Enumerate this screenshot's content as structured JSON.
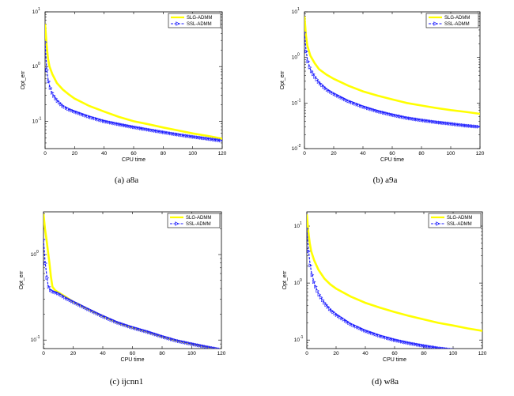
{
  "colors": {
    "slg": "#ffff00",
    "ssl": "#1a1aff",
    "axis": "#000000"
  },
  "chart_data": [
    {
      "type": "line",
      "caption": "(a) a8a",
      "xlabel": "CPU time",
      "ylabel": "Opt_err",
      "xlim": [
        0,
        120
      ],
      "ylim_log10": [
        -1.5,
        1
      ],
      "y_scale": "log",
      "x_ticks": [
        "0",
        "20",
        "40",
        "60",
        "80",
        "100",
        "120"
      ],
      "y_ticks": [
        {
          "text": "10",
          "exp": "1",
          "v": 1
        },
        {
          "text": "10",
          "exp": "0",
          "v": 0
        },
        {
          "text": "10",
          "exp": "-1",
          "v": -1
        }
      ],
      "legend": {
        "placement": "top-right",
        "entries": [
          "SLG-ADMM",
          "SSL-ADMM"
        ]
      },
      "series": [
        {
          "name": "SLG-ADMM",
          "color": "#ffff00",
          "marker": "none",
          "x": [
            0,
            1,
            2,
            3,
            5,
            8,
            12,
            16,
            20,
            30,
            40,
            50,
            60,
            70,
            80,
            90,
            100,
            110,
            120
          ],
          "y": [
            6.0,
            2.5,
            1.4,
            1.0,
            0.72,
            0.5,
            0.38,
            0.31,
            0.26,
            0.19,
            0.15,
            0.12,
            0.1,
            0.088,
            0.077,
            0.068,
            0.06,
            0.054,
            0.048
          ]
        },
        {
          "name": "SSL-ADMM",
          "color": "#1a1aff",
          "marker": "triangle",
          "x": [
            0,
            1,
            2,
            3,
            5,
            8,
            12,
            16,
            20,
            30,
            40,
            50,
            60,
            70,
            80,
            90,
            100,
            110,
            120
          ],
          "y": [
            2.8,
            0.95,
            0.6,
            0.45,
            0.32,
            0.24,
            0.19,
            0.165,
            0.15,
            0.12,
            0.1,
            0.088,
            0.078,
            0.07,
            0.063,
            0.057,
            0.052,
            0.048,
            0.044
          ]
        }
      ]
    },
    {
      "type": "line",
      "caption": "(b) a9a",
      "xlabel": "CPU time",
      "ylabel": "Opt_err",
      "xlim": [
        0,
        120
      ],
      "ylim_log10": [
        -2,
        1
      ],
      "y_scale": "log",
      "x_ticks": [
        "0",
        "20",
        "40",
        "60",
        "80",
        "100",
        "120"
      ],
      "y_ticks": [
        {
          "text": "10",
          "exp": "1",
          "v": 1
        },
        {
          "text": "10",
          "exp": "0",
          "v": 0
        },
        {
          "text": "10",
          "exp": "-1",
          "v": -1
        },
        {
          "text": "10",
          "exp": "-2",
          "v": -2
        }
      ],
      "legend": {
        "placement": "top-right",
        "entries": [
          "SLG-ADMM",
          "SSL-ADMM"
        ]
      },
      "series": [
        {
          "name": "SLG-ADMM",
          "color": "#ffff00",
          "marker": "none",
          "x": [
            0,
            1,
            2,
            4,
            7,
            10,
            15,
            20,
            30,
            40,
            50,
            60,
            70,
            80,
            90,
            100,
            110,
            120
          ],
          "y": [
            8.0,
            3.0,
            1.8,
            1.1,
            0.75,
            0.55,
            0.42,
            0.34,
            0.24,
            0.18,
            0.145,
            0.12,
            0.1,
            0.088,
            0.078,
            0.07,
            0.064,
            0.058
          ]
        },
        {
          "name": "SSL-ADMM",
          "color": "#1a1aff",
          "marker": "triangle",
          "x": [
            0,
            1,
            2,
            4,
            7,
            10,
            15,
            20,
            30,
            40,
            50,
            60,
            70,
            80,
            90,
            100,
            110,
            120
          ],
          "y": [
            3.5,
            1.5,
            0.9,
            0.55,
            0.38,
            0.28,
            0.2,
            0.16,
            0.11,
            0.083,
            0.066,
            0.055,
            0.047,
            0.042,
            0.038,
            0.035,
            0.032,
            0.03
          ]
        }
      ]
    },
    {
      "type": "line",
      "caption": "(c) ijcnn1",
      "xlabel": "CPU time",
      "ylabel": "Opt_err",
      "xlim": [
        0,
        120
      ],
      "ylim_log10": [
        -1.1,
        0.5
      ],
      "y_scale": "log",
      "x_ticks": [
        "0",
        "20",
        "40",
        "60",
        "80",
        "100",
        "120"
      ],
      "y_ticks": [
        {
          "text": "10",
          "exp": "0",
          "v": 0
        },
        {
          "text": "10",
          "exp": "-1",
          "v": -1
        }
      ],
      "legend": {
        "placement": "top-right",
        "entries": [
          "SLG-ADMM",
          "SSL-ADMM"
        ]
      },
      "series": [
        {
          "name": "SLG-ADMM",
          "color": "#ffff00",
          "marker": "none",
          "x": [
            0,
            1,
            2,
            3,
            4,
            5,
            6,
            8,
            10,
            15,
            20,
            30,
            40,
            50,
            60,
            70,
            80,
            90,
            100,
            110,
            120
          ],
          "y": [
            3.0,
            2.0,
            1.5,
            1.1,
            0.8,
            0.55,
            0.42,
            0.38,
            0.36,
            0.32,
            0.28,
            0.23,
            0.19,
            0.16,
            0.14,
            0.125,
            0.11,
            0.098,
            0.09,
            0.083,
            0.077
          ]
        },
        {
          "name": "SSL-ADMM",
          "color": "#1a1aff",
          "marker": "triangle",
          "x": [
            0,
            1,
            2,
            3,
            4,
            5,
            6,
            8,
            10,
            15,
            20,
            30,
            40,
            50,
            60,
            70,
            80,
            90,
            100,
            110,
            120
          ],
          "y": [
            1.5,
            0.85,
            0.6,
            0.45,
            0.4,
            0.38,
            0.37,
            0.36,
            0.35,
            0.31,
            0.28,
            0.23,
            0.19,
            0.16,
            0.14,
            0.125,
            0.11,
            0.098,
            0.09,
            0.083,
            0.077
          ]
        }
      ]
    },
    {
      "type": "line",
      "caption": "(d) w8a",
      "xlabel": "CPU time",
      "ylabel": "Opt_err",
      "xlim": [
        0,
        120
      ],
      "ylim_log10": [
        -1.15,
        1.25
      ],
      "y_scale": "log",
      "x_ticks": [
        "0",
        "20",
        "40",
        "60",
        "80",
        "100",
        "120"
      ],
      "y_ticks": [
        {
          "text": "10",
          "exp": "1",
          "v": 1
        },
        {
          "text": "10",
          "exp": "0",
          "v": 0
        },
        {
          "text": "10",
          "exp": "-1",
          "v": -1
        }
      ],
      "legend": {
        "placement": "top-right",
        "entries": [
          "SLG-ADMM",
          "SSL-ADMM"
        ]
      },
      "series": [
        {
          "name": "SLG-ADMM",
          "color": "#ffff00",
          "marker": "none",
          "x": [
            0,
            1,
            2,
            3,
            5,
            8,
            12,
            16,
            20,
            30,
            40,
            50,
            60,
            70,
            80,
            90,
            100,
            110,
            120
          ],
          "y": [
            16.0,
            8.0,
            5.0,
            3.6,
            2.5,
            1.7,
            1.2,
            0.95,
            0.8,
            0.58,
            0.45,
            0.37,
            0.31,
            0.265,
            0.23,
            0.2,
            0.18,
            0.16,
            0.145
          ]
        },
        {
          "name": "SSL-ADMM",
          "color": "#1a1aff",
          "marker": "triangle",
          "x": [
            0,
            1,
            2,
            3,
            5,
            8,
            12,
            16,
            20,
            30,
            40,
            50,
            60,
            70,
            80,
            90,
            100,
            110,
            120
          ],
          "y": [
            9.0,
            4.0,
            2.4,
            1.6,
            1.0,
            0.65,
            0.45,
            0.34,
            0.28,
            0.19,
            0.145,
            0.118,
            0.1,
            0.088,
            0.079,
            0.072,
            0.067,
            0.063,
            0.06
          ]
        }
      ]
    }
  ]
}
